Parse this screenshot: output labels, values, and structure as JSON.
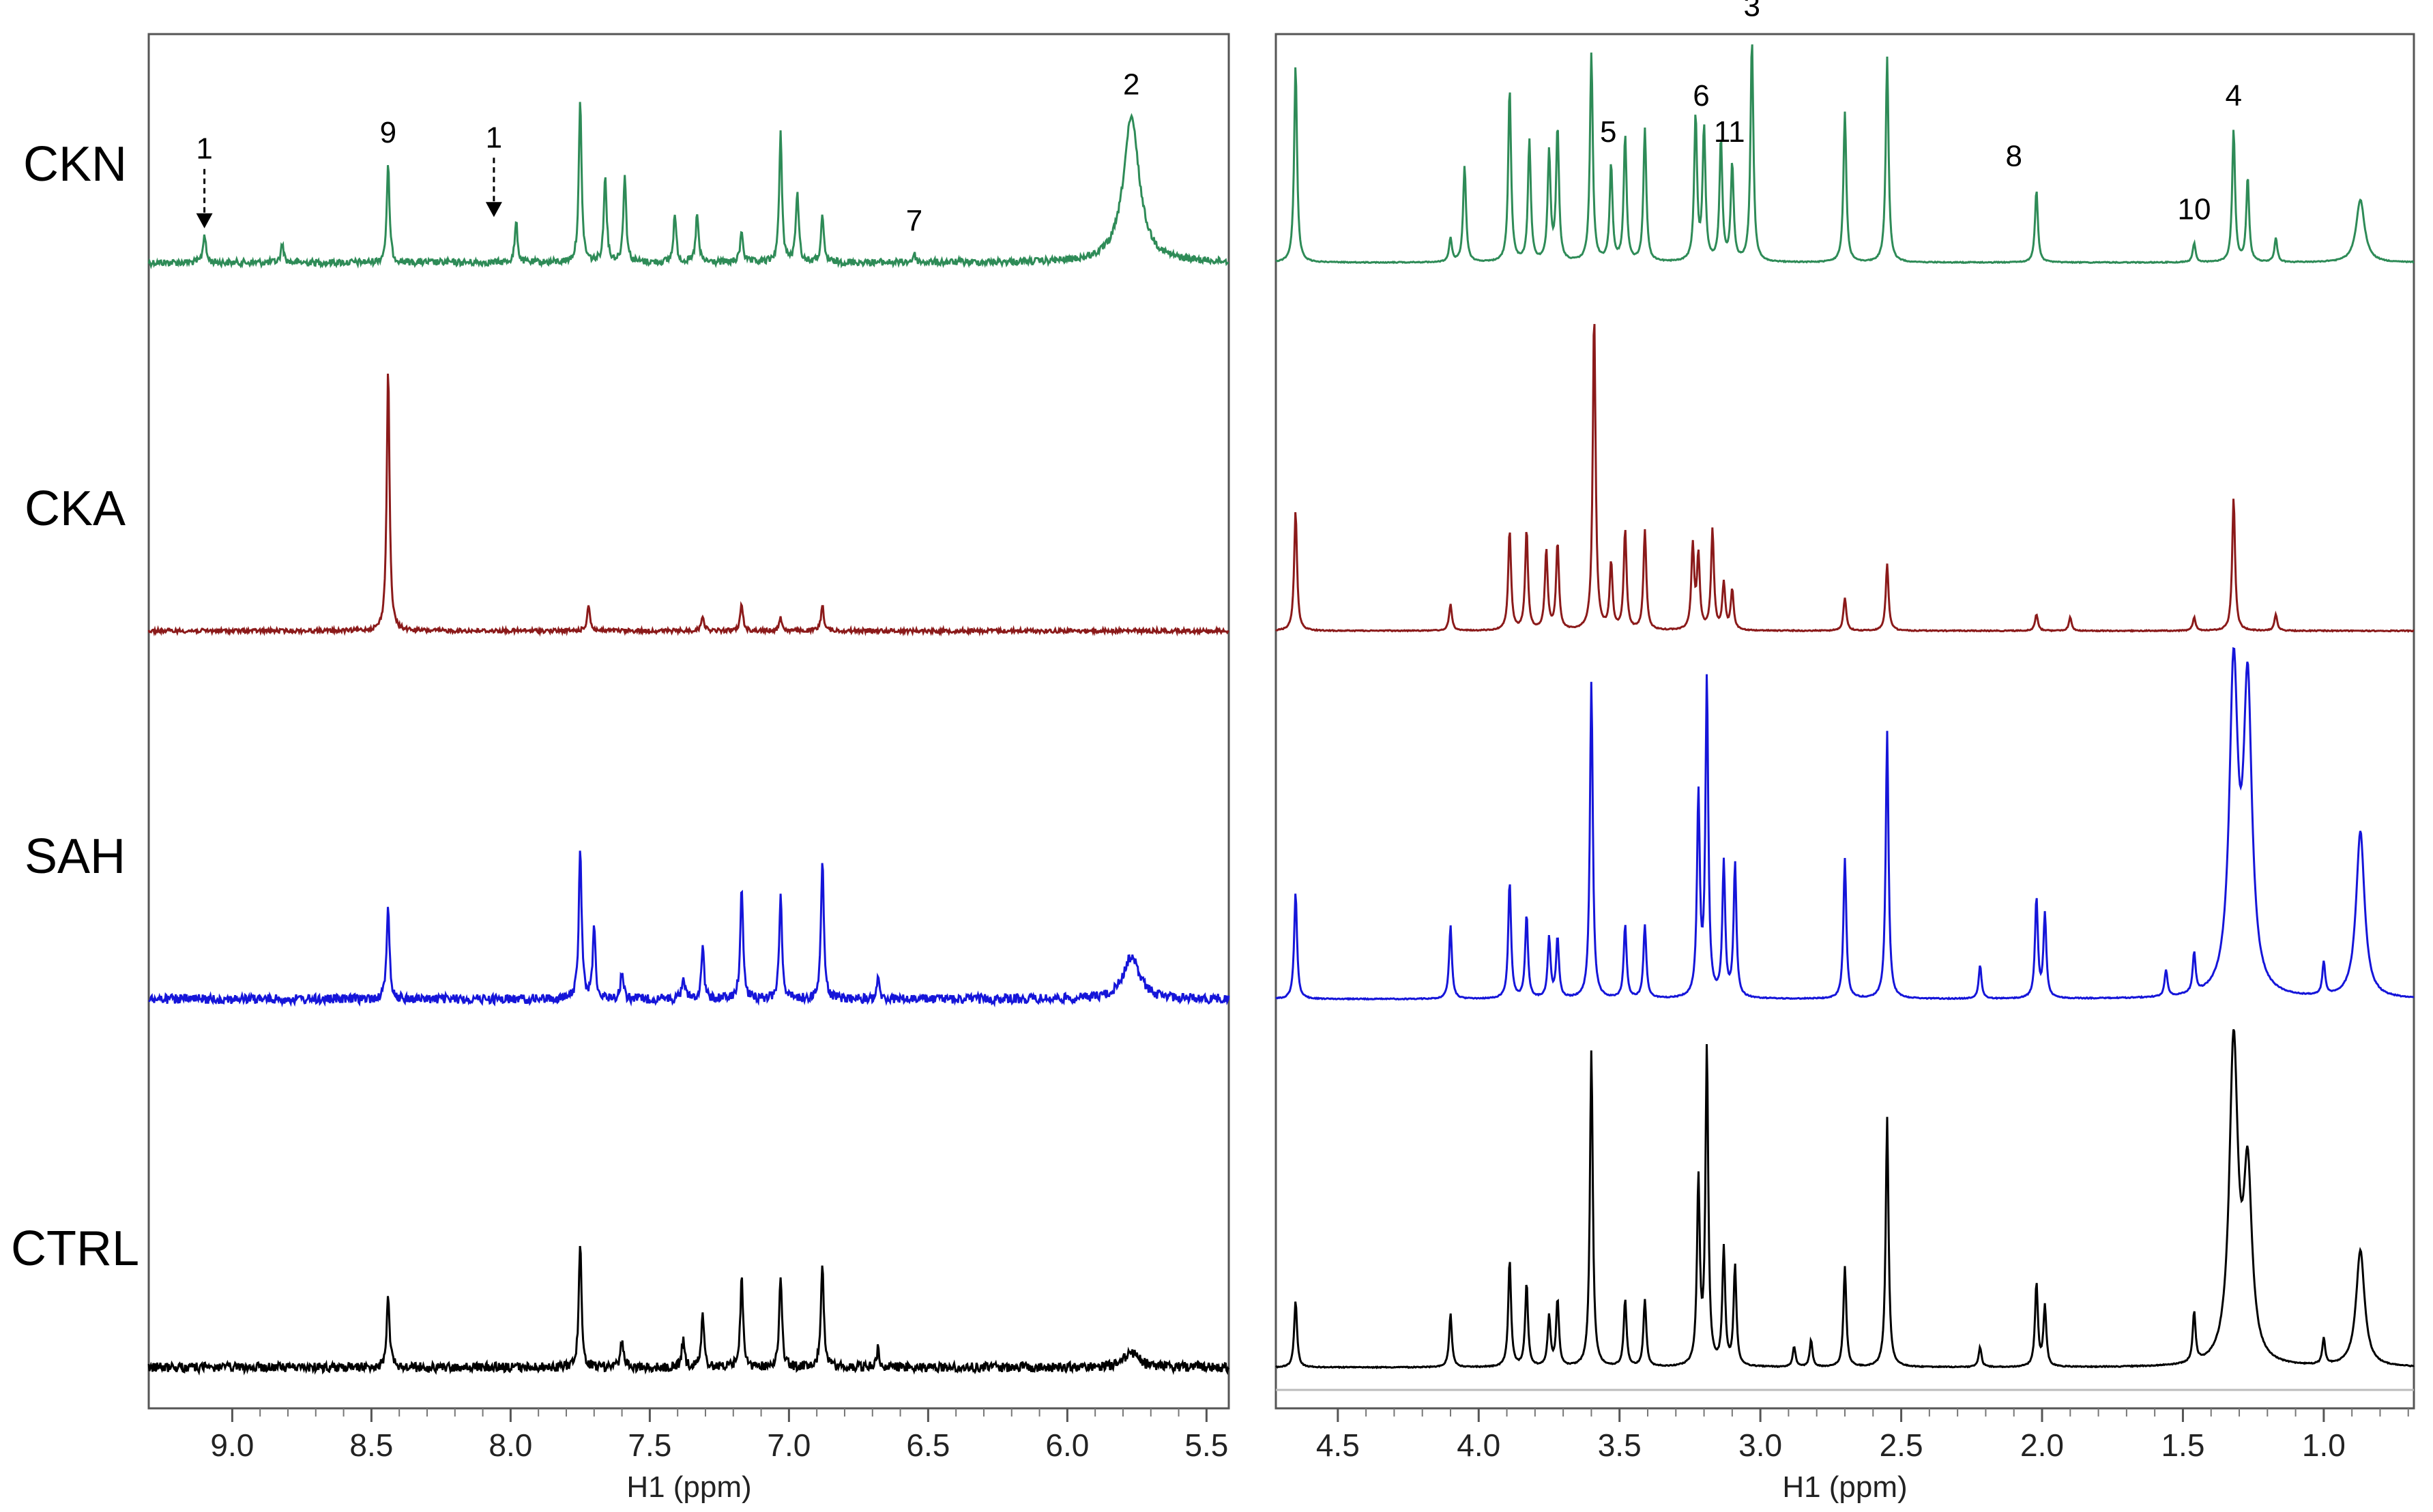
{
  "chart_data": [
    {
      "type": "line",
      "panel": "left",
      "xlabel": "H1 (ppm)",
      "ylabel": "",
      "xlim": [
        9.3,
        5.42
      ],
      "x_reversed": true,
      "xticks": [
        "9.0",
        "8.5",
        "8.0",
        "7.5",
        "7.0",
        "6.5",
        "6.0",
        "5.5"
      ],
      "series": [
        {
          "name": "CKN",
          "color": "#2e8b57",
          "peaks": [
            [
              9.1,
              0.18
            ],
            [
              8.82,
              0.12
            ],
            [
              8.44,
              0.6
            ],
            [
              7.98,
              0.25
            ],
            [
              7.75,
              1.0
            ],
            [
              7.66,
              0.55
            ],
            [
              7.59,
              0.55
            ],
            [
              7.41,
              0.3
            ],
            [
              7.33,
              0.3
            ],
            [
              7.17,
              0.2
            ],
            [
              7.03,
              0.8
            ],
            [
              6.97,
              0.45
            ],
            [
              6.88,
              0.28
            ],
            [
              6.55,
              0.05
            ],
            [
              5.77,
              0.9
            ]
          ]
        },
        {
          "name": "CKA",
          "color": "#8b1a1a",
          "peaks": [
            [
              8.44,
              1.0
            ],
            [
              7.72,
              0.1
            ],
            [
              7.31,
              0.06
            ],
            [
              7.17,
              0.1
            ],
            [
              7.03,
              0.05
            ],
            [
              6.88,
              0.1
            ]
          ]
        },
        {
          "name": "SAH",
          "color": "#1515d9",
          "peaks": [
            [
              8.44,
              0.4
            ],
            [
              7.75,
              0.65
            ],
            [
              7.7,
              0.3
            ],
            [
              7.6,
              0.12
            ],
            [
              7.38,
              0.1
            ],
            [
              7.31,
              0.22
            ],
            [
              7.17,
              0.48
            ],
            [
              7.03,
              0.45
            ],
            [
              6.88,
              0.6
            ],
            [
              6.68,
              0.08
            ],
            [
              5.77,
              0.18
            ]
          ]
        },
        {
          "name": "CTRL",
          "color": "#000000",
          "peaks": [
            [
              8.44,
              0.32
            ],
            [
              7.75,
              0.52
            ],
            [
              7.6,
              0.12
            ],
            [
              7.38,
              0.12
            ],
            [
              7.31,
              0.22
            ],
            [
              7.17,
              0.38
            ],
            [
              7.03,
              0.38
            ],
            [
              6.88,
              0.45
            ],
            [
              6.68,
              0.08
            ],
            [
              5.77,
              0.06
            ]
          ]
        }
      ],
      "annotations": [
        {
          "text": "1",
          "x": 9.1,
          "series": "CKN",
          "arrow": true
        },
        {
          "text": "9",
          "x": 8.44,
          "series": "CKN"
        },
        {
          "text": "1",
          "x": 8.06,
          "series": "CKN",
          "arrow": true
        },
        {
          "text": "7",
          "x": 6.55,
          "series": "CKN"
        },
        {
          "text": "2",
          "x": 5.77,
          "series": "CKN"
        }
      ]
    },
    {
      "type": "line",
      "panel": "right",
      "xlabel": "H1 (ppm)",
      "ylabel": "",
      "xlim": [
        4.72,
        0.68
      ],
      "x_reversed": true,
      "xticks": [
        "4.5",
        "4.0",
        "3.5",
        "3.0",
        "2.5",
        "2.0",
        "1.5",
        "1.0"
      ],
      "series": [
        {
          "name": "CKN",
          "color": "#2e8b57",
          "peaks": [
            [
              4.65,
              0.82
            ],
            [
              4.1,
              0.1
            ],
            [
              4.05,
              0.4
            ],
            [
              3.89,
              0.72
            ],
            [
              3.82,
              0.5
            ],
            [
              3.75,
              0.45
            ],
            [
              3.72,
              0.55
            ],
            [
              3.6,
              0.86
            ],
            [
              3.53,
              0.4
            ],
            [
              3.48,
              0.52
            ],
            [
              3.41,
              0.55
            ],
            [
              3.23,
              0.6
            ],
            [
              3.2,
              0.55
            ],
            [
              3.14,
              0.5
            ],
            [
              3.1,
              0.4
            ],
            [
              3.03,
              0.92
            ],
            [
              2.7,
              0.62
            ],
            [
              2.55,
              0.85
            ],
            [
              2.02,
              0.3
            ],
            [
              1.46,
              0.08
            ],
            [
              1.32,
              0.55
            ],
            [
              1.27,
              0.35
            ],
            [
              1.17,
              0.1
            ],
            [
              0.87,
              0.26
            ]
          ]
        },
        {
          "name": "CKA",
          "color": "#8b1a1a",
          "peaks": [
            [
              4.65,
              0.36
            ],
            [
              4.1,
              0.08
            ],
            [
              3.89,
              0.3
            ],
            [
              3.83,
              0.3
            ],
            [
              3.76,
              0.24
            ],
            [
              3.72,
              0.26
            ],
            [
              3.59,
              0.95
            ],
            [
              3.53,
              0.2
            ],
            [
              3.48,
              0.3
            ],
            [
              3.41,
              0.3
            ],
            [
              3.24,
              0.25
            ],
            [
              3.22,
              0.22
            ],
            [
              3.17,
              0.3
            ],
            [
              3.13,
              0.14
            ],
            [
              3.1,
              0.12
            ],
            [
              2.7,
              0.1
            ],
            [
              2.55,
              0.2
            ],
            [
              2.02,
              0.05
            ],
            [
              1.9,
              0.04
            ],
            [
              1.46,
              0.04
            ],
            [
              1.32,
              0.4
            ],
            [
              1.17,
              0.05
            ]
          ]
        },
        {
          "name": "SAH",
          "color": "#1515d9",
          "peaks": [
            [
              4.65,
              0.32
            ],
            [
              4.1,
              0.22
            ],
            [
              3.89,
              0.35
            ],
            [
              3.83,
              0.25
            ],
            [
              3.75,
              0.18
            ],
            [
              3.72,
              0.18
            ],
            [
              3.6,
              0.95
            ],
            [
              3.48,
              0.22
            ],
            [
              3.41,
              0.22
            ],
            [
              3.22,
              0.6
            ],
            [
              3.19,
              0.95
            ],
            [
              3.13,
              0.4
            ],
            [
              3.09,
              0.4
            ],
            [
              2.7,
              0.42
            ],
            [
              2.55,
              0.8
            ],
            [
              2.22,
              0.1
            ],
            [
              2.02,
              0.3
            ],
            [
              1.99,
              0.25
            ],
            [
              1.56,
              0.08
            ],
            [
              1.46,
              0.12
            ],
            [
              1.32,
              0.95
            ],
            [
              1.27,
              0.9
            ],
            [
              1.0,
              0.1
            ],
            [
              0.87,
              0.5
            ]
          ]
        },
        {
          "name": "CTRL",
          "color": "#000000",
          "peaks": [
            [
              4.65,
              0.2
            ],
            [
              4.1,
              0.16
            ],
            [
              3.89,
              0.32
            ],
            [
              3.83,
              0.25
            ],
            [
              3.75,
              0.15
            ],
            [
              3.72,
              0.2
            ],
            [
              3.6,
              0.95
            ],
            [
              3.48,
              0.2
            ],
            [
              3.41,
              0.2
            ],
            [
              3.22,
              0.55
            ],
            [
              3.19,
              0.95
            ],
            [
              3.13,
              0.35
            ],
            [
              3.09,
              0.3
            ],
            [
              2.88,
              0.06
            ],
            [
              2.82,
              0.08
            ],
            [
              2.7,
              0.3
            ],
            [
              2.55,
              0.75
            ],
            [
              2.22,
              0.06
            ],
            [
              2.02,
              0.25
            ],
            [
              1.99,
              0.18
            ],
            [
              1.46,
              0.15
            ],
            [
              1.32,
              0.95
            ],
            [
              1.27,
              0.55
            ],
            [
              1.0,
              0.08
            ],
            [
              0.87,
              0.35
            ]
          ]
        }
      ],
      "annotations": [
        {
          "text": "5",
          "x": 3.54,
          "series": "CKN"
        },
        {
          "text": "6",
          "x": 3.21,
          "series": "CKN"
        },
        {
          "text": "11",
          "x": 3.11,
          "series": "CKN"
        },
        {
          "text": "3",
          "x": 3.03,
          "series": "CKN"
        },
        {
          "text": "8",
          "x": 2.1,
          "series": "CKN"
        },
        {
          "text": "10",
          "x": 1.46,
          "series": "CKN"
        },
        {
          "text": "4",
          "x": 1.32,
          "series": "CKN"
        }
      ]
    }
  ],
  "row_labels": [
    "CKN",
    "CKA",
    "SAH",
    "CTRL"
  ]
}
